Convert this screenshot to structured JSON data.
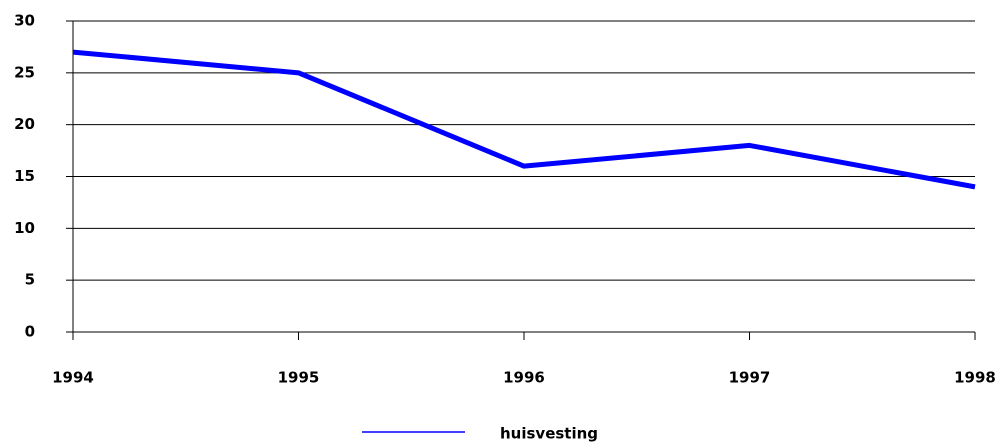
{
  "chart_data": {
    "type": "line",
    "x": [
      1994,
      1995,
      1996,
      1997,
      1998
    ],
    "series": [
      {
        "name": "huisvesting",
        "color": "#0000ff",
        "values": [
          27,
          25,
          16,
          18,
          14
        ]
      }
    ],
    "xlim": [
      1994,
      1998
    ],
    "xticks": [
      1994,
      1995,
      1996,
      1997,
      1998
    ],
    "ylim": [
      0,
      30
    ],
    "yticks": [
      0,
      5,
      10,
      15,
      20,
      25,
      30
    ],
    "grid": true,
    "legend": "bottom"
  }
}
